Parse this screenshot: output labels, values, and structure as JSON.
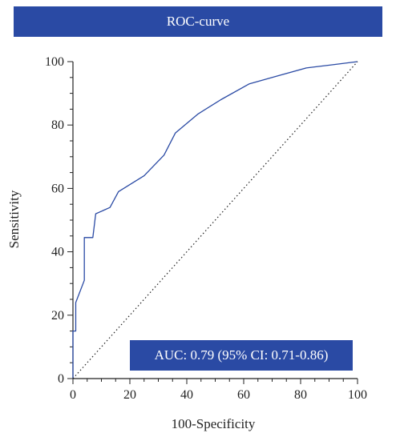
{
  "chart_data": {
    "type": "line",
    "title": "ROC-curve",
    "xlabel": "100-Specificity",
    "ylabel": "Sensitivity",
    "xlim": [
      0,
      100
    ],
    "ylim": [
      0,
      100
    ],
    "xticks": [
      0,
      20,
      40,
      60,
      80,
      100
    ],
    "yticks": [
      0,
      20,
      40,
      60,
      80,
      100
    ],
    "series": [
      {
        "x": [
          0,
          0,
          1,
          1,
          1,
          4,
          4,
          4,
          7,
          8,
          13,
          16,
          25,
          32,
          36,
          44,
          52,
          62,
          72,
          82,
          91,
          100
        ],
        "y": [
          0,
          15,
          15,
          20,
          24,
          31,
          38,
          44.5,
          44.5,
          52,
          54,
          59,
          64,
          70.5,
          77.5,
          83.5,
          88,
          93,
          95.5,
          98,
          99,
          100
        ],
        "color": "#2a4aa4",
        "style": "solid"
      },
      {
        "x": [
          0,
          100
        ],
        "y": [
          0,
          100
        ],
        "color": "#222222",
        "style": "dotted"
      }
    ],
    "annotation": "AUC: 0.79 (95% CI: 0.71-0.86)",
    "grid": false
  }
}
